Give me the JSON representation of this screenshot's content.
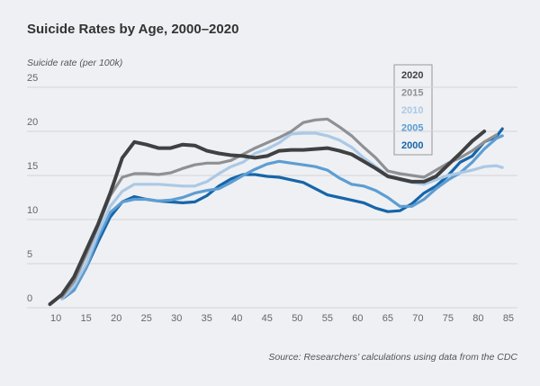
{
  "chart_data": {
    "type": "line",
    "title": "Suicide Rates by Age, 2000–2020",
    "y_label": "Suicide rate (per 100k)",
    "source": "Source: Researchers’ calculations using data from the CDC",
    "x": [
      9,
      11,
      13,
      15,
      17,
      19,
      21,
      23,
      25,
      27,
      29,
      31,
      33,
      35,
      37,
      39,
      41,
      43,
      45,
      47,
      49,
      51,
      53,
      55,
      57,
      59,
      61,
      63,
      65,
      67,
      69,
      71,
      73,
      75,
      77,
      79,
      81,
      83,
      84
    ],
    "xlim": [
      5.2,
      86.5
    ],
    "xticks": [
      10,
      15,
      20,
      25,
      30,
      35,
      40,
      45,
      50,
      55,
      60,
      65,
      70,
      75,
      80,
      85
    ],
    "ylim": [
      0,
      25
    ],
    "yticks": [
      0,
      5,
      10,
      15,
      20,
      25
    ],
    "grid": true,
    "series": [
      {
        "name": "2020",
        "color": "#3f4042",
        "values": [
          0.4,
          1.5,
          3.5,
          6.5,
          9.5,
          13,
          17,
          18.8,
          18.5,
          18.1,
          18.1,
          18.5,
          18.4,
          17.8,
          17.5,
          17.3,
          17.2,
          17,
          17.2,
          17.8,
          17.9,
          17.9,
          18,
          18.1,
          17.8,
          17.4,
          16.6,
          15.8,
          14.9,
          14.6,
          14.3,
          14.3,
          14.9,
          16.2,
          17.5,
          18.9,
          20,
          null,
          null
        ]
      },
      {
        "name": "2015",
        "color": "#8e9093",
        "values": [
          null,
          1.2,
          3,
          6,
          9.3,
          12.7,
          14.8,
          15.2,
          15.2,
          15.1,
          15.3,
          15.8,
          16.2,
          16.4,
          16.4,
          16.7,
          17.4,
          18.1,
          18.7,
          19.3,
          20,
          21,
          21.3,
          21.4,
          20.5,
          19.5,
          18.2,
          17,
          15.5,
          15.2,
          15,
          14.8,
          15.6,
          16.4,
          17,
          17.8,
          18.8,
          19.6,
          null
        ]
      },
      {
        "name": "2010",
        "color": "#abc9e6",
        "values": [
          null,
          1,
          2.5,
          5,
          8.5,
          11.5,
          13.2,
          14,
          14,
          14,
          13.9,
          13.8,
          13.8,
          14.3,
          15.2,
          16,
          16.5,
          17.5,
          18,
          18.7,
          19.7,
          19.8,
          19.8,
          19.5,
          19,
          18.2,
          17,
          16,
          15,
          14.5,
          14.2,
          14,
          14.5,
          15,
          15.3,
          15.6,
          16,
          16.1,
          15.9
        ]
      },
      {
        "name": "2005",
        "color": "#5d9dd2",
        "values": [
          null,
          1.1,
          2,
          4.5,
          8,
          10.8,
          12,
          12.3,
          12.3,
          12.1,
          12.2,
          12.5,
          13,
          13.3,
          13.5,
          14.2,
          15,
          15.7,
          16.3,
          16.6,
          16.4,
          16.2,
          16,
          15.6,
          14.7,
          14,
          13.8,
          13.3,
          12.5,
          11.5,
          11.5,
          12.3,
          13.5,
          14.5,
          15.3,
          16.5,
          18,
          19.2,
          19.5
        ]
      },
      {
        "name": "2000",
        "color": "#1665a9",
        "values": [
          null,
          1,
          2,
          4.5,
          7.5,
          10.3,
          12,
          12.6,
          12.3,
          12.1,
          12,
          11.9,
          12,
          12.7,
          13.8,
          14.6,
          15.1,
          15.1,
          14.9,
          14.8,
          14.5,
          14.2,
          13.5,
          12.8,
          12.5,
          12.2,
          11.9,
          11.3,
          10.9,
          11,
          11.8,
          13,
          13.8,
          15,
          16.5,
          17.2,
          18.8,
          19.4,
          20.3
        ]
      }
    ]
  }
}
